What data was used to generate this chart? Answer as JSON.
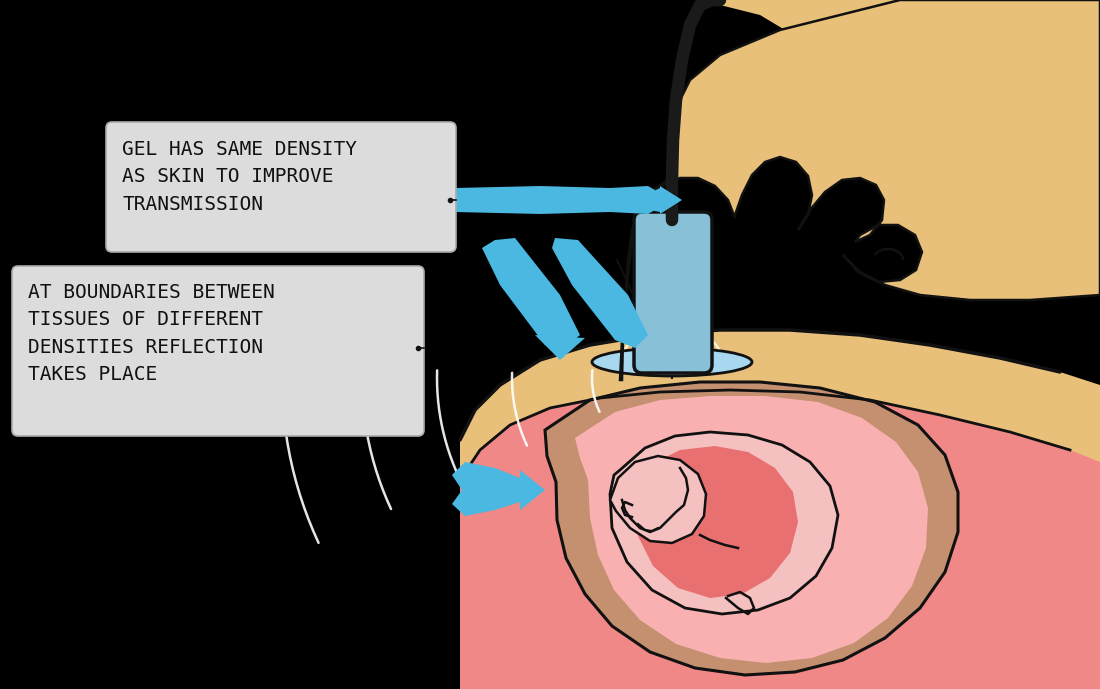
{
  "bg_color": "#000000",
  "text_box1": "GEL HAS SAME DENSITY\nAS SKIN TO IMPROVE\nTRANSMISSION",
  "text_box2": "AT BOUNDARIES BETWEEN\nTISSUES OF DIFFERENT\nDENSITIES REFLECTION\nTAKES PLACE",
  "box_facecolor": "#dcdcdc",
  "box_edgecolor": "#aaaaaa",
  "blue_color": "#4ab8e0",
  "skin_color": "#e8c07a",
  "body_pink": "#f08888",
  "body_pink2": "#e87070",
  "body_brown": "#c49070",
  "amniotic_pink": "#f8b0b0",
  "probe_blue": "#88c0d8",
  "gel_blue": "#a8d8f0",
  "cable_color": "#1a1a1a",
  "white_line": "#ffffff",
  "black_line": "#111111",
  "text_color": "#111111",
  "text_fontsize": 14,
  "figsize": [
    11.0,
    6.89
  ]
}
